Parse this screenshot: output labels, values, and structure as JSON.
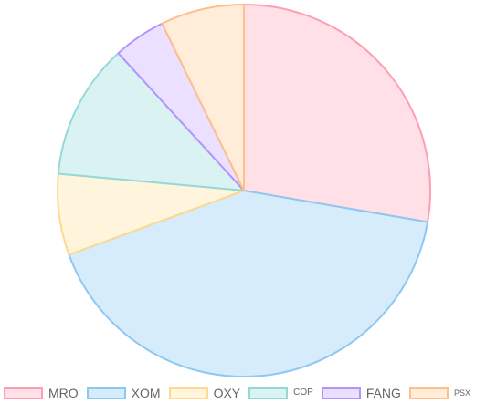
{
  "chart_data": {
    "type": "pie",
    "categories": [
      "MRO",
      "XOM",
      "OXY",
      "COP",
      "FANG",
      "PSX"
    ],
    "values": [
      28.7,
      43.2,
      7.3,
      12.2,
      4.7,
      7.5
    ],
    "fill_colors": [
      "#ffe0e6",
      "#d7ecfb",
      "#fff5dd",
      "#dbf2f2",
      "#ebe0ff",
      "#ffecd9"
    ],
    "border_colors": [
      "#ff9eb3",
      "#8cc8f2",
      "#ffd98e",
      "#93d9d9",
      "#b394ff",
      "#ffbf8a"
    ],
    "legend_position": "bottom",
    "legend_font_sizes": [
      14,
      14,
      14,
      10,
      14,
      9
    ]
  }
}
